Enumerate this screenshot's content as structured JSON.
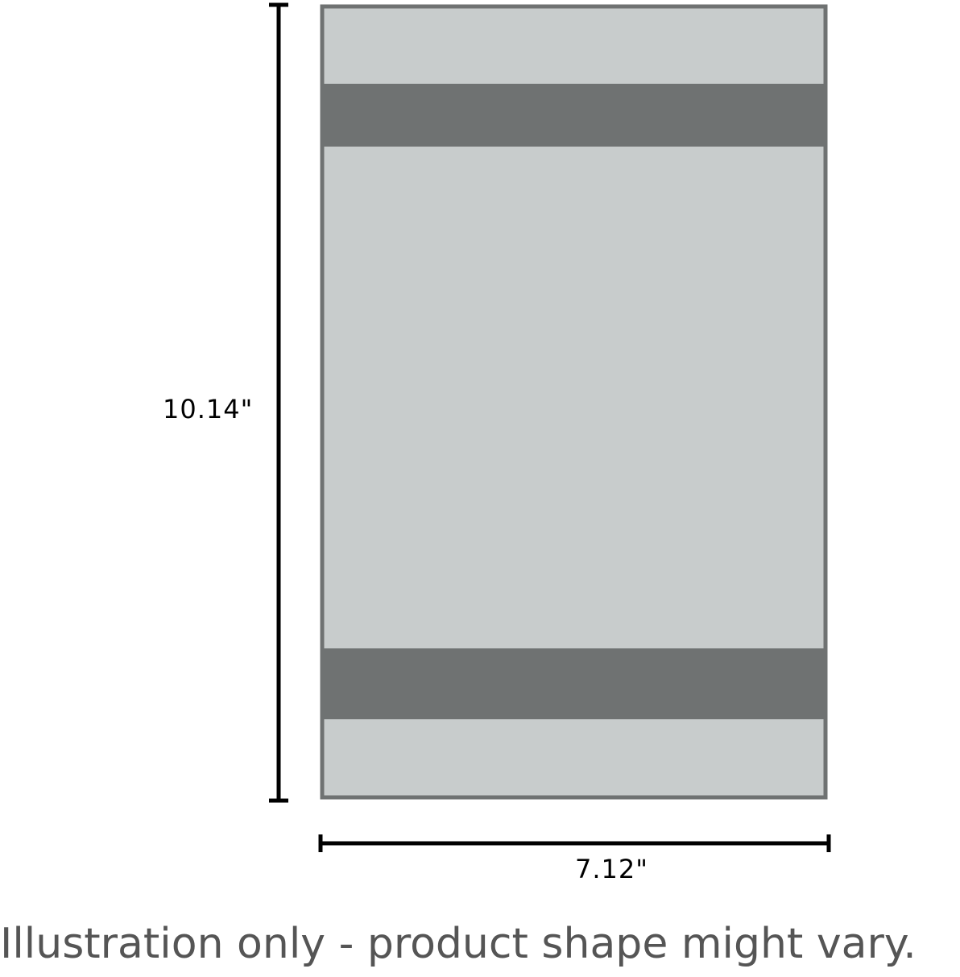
{
  "height_label": "10.14\"",
  "width_label": "7.12\"",
  "caption": "Illustration only - product shape might vary.",
  "colors": {
    "body": "#c8cccc",
    "band": "#6f7272",
    "outline": "#6f7272",
    "dimension_line": "#000000",
    "caption": "#555555"
  }
}
